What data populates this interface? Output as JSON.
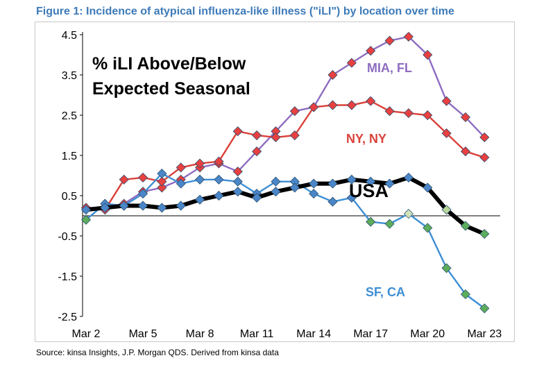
{
  "title": "Figure 1: Incidence of atypical influenza-like illness (\"iLI\") by location over time",
  "source": "Source: kinsa Insights, J.P. Morgan QDS.  Derived from kinsa data",
  "chart_data": {
    "type": "line",
    "title": "Figure 1: Incidence of atypical influenza-like illness (\"iLI\") by location over time",
    "annotation": [
      "% iLI Above/Below",
      "Expected Seasonal"
    ],
    "xlabel": "",
    "ylabel": "",
    "x": [
      "Mar 2",
      "Mar 3",
      "Mar 4",
      "Mar 5",
      "Mar 6",
      "Mar 7",
      "Mar 8",
      "Mar 9",
      "Mar 10",
      "Mar 11",
      "Mar 12",
      "Mar 13",
      "Mar 14",
      "Mar 15",
      "Mar 16",
      "Mar 17",
      "Mar 18",
      "Mar 19",
      "Mar 20",
      "Mar 21",
      "Mar 22",
      "Mar 23"
    ],
    "x_tick_labels": [
      "Mar 2",
      "Mar 5",
      "Mar 8",
      "Mar 11",
      "Mar 14",
      "Mar 17",
      "Mar 20",
      "Mar 23"
    ],
    "y_ticks": [
      "4.5",
      "3.5",
      "2.5",
      "1.5",
      "0.5",
      "-0.5",
      "-1.5",
      "-2.5"
    ],
    "ylim": [
      -2.5,
      4.5
    ],
    "grid": false,
    "series": [
      {
        "name": "MIA, FL",
        "color": "#8e6cc0",
        "marker_color": "#e84040",
        "values": [
          0.2,
          0.2,
          0.3,
          0.6,
          0.7,
          0.9,
          1.2,
          1.3,
          1.1,
          1.6,
          2.1,
          2.6,
          2.7,
          3.5,
          3.8,
          4.1,
          4.35,
          4.45,
          4.0,
          2.85,
          2.45,
          1.95
        ]
      },
      {
        "name": "NY, NY",
        "color": "#d9413a",
        "marker_color": "#e84040",
        "values": [
          0.2,
          0.15,
          0.9,
          0.95,
          0.85,
          1.2,
          1.3,
          1.35,
          2.1,
          2.0,
          1.95,
          2.0,
          2.7,
          2.75,
          2.75,
          2.85,
          2.6,
          2.55,
          2.5,
          2.05,
          1.6,
          1.45
        ]
      },
      {
        "name": "SF, CA",
        "color": "#3d8ed4",
        "marker_color_normal": "#4a86c8",
        "marker_color_below": "#5cad5c",
        "values": [
          -0.1,
          0.3,
          0.25,
          0.55,
          1.05,
          0.8,
          0.9,
          0.9,
          0.85,
          0.55,
          0.85,
          0.85,
          0.55,
          0.35,
          0.45,
          -0.15,
          -0.2,
          0.05,
          -0.3,
          -1.3,
          -1.95,
          -2.3
        ]
      },
      {
        "name": "USA",
        "color": "#000000",
        "marker_color": "#4a86c8",
        "values": [
          0.15,
          0.2,
          0.25,
          0.25,
          0.2,
          0.25,
          0.4,
          0.5,
          0.6,
          0.45,
          0.6,
          0.7,
          0.8,
          0.8,
          0.9,
          0.85,
          0.8,
          0.95,
          0.7,
          0.15,
          -0.25,
          -0.45
        ]
      }
    ]
  }
}
